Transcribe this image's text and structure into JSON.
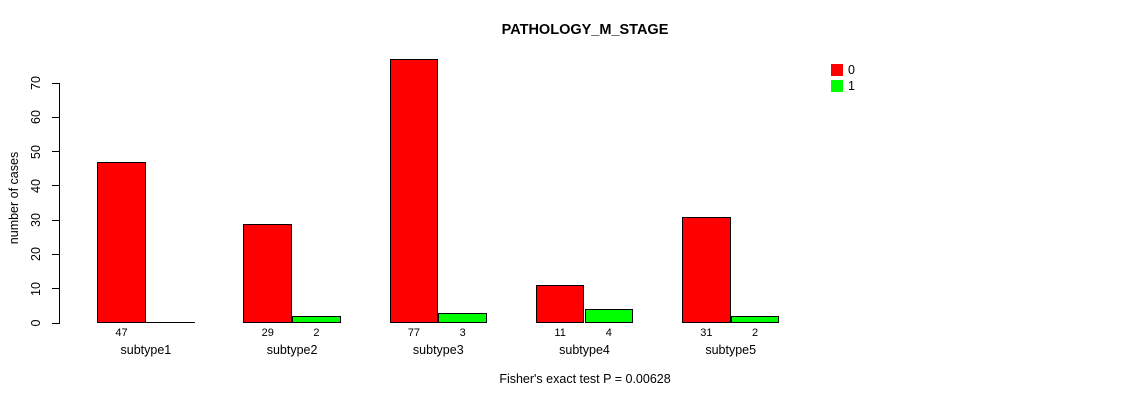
{
  "chart_data": {
    "type": "bar",
    "title": "PATHOLOGY_M_STAGE",
    "ylabel": "number of cases",
    "xlabel": "",
    "categories": [
      "subtype1",
      "subtype2",
      "subtype3",
      "subtype4",
      "subtype5"
    ],
    "series": [
      {
        "name": "0",
        "color": "#FF0000",
        "values": [
          47,
          29,
          77,
          11,
          31
        ]
      },
      {
        "name": "1",
        "color": "#00FF00",
        "values": [
          0,
          2,
          3,
          4,
          2
        ]
      }
    ],
    "ylim": [
      0,
      70
    ],
    "yticks": [
      0,
      10,
      20,
      30,
      40,
      50,
      60,
      70
    ],
    "grid": false,
    "legend_position": "top-right",
    "legend_labels": [
      "0",
      "1"
    ],
    "value_labels_shown": "counts printed under each nonzero bar",
    "annotation": "Fisher's exact test P = 0.00628"
  },
  "colors": {
    "series0": "#FF0000",
    "series1": "#00FF00",
    "axis": "#000000",
    "text": "#000000",
    "background": "#FFFFFF"
  }
}
